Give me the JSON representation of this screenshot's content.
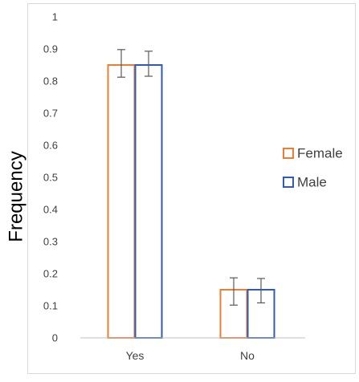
{
  "chart_data": {
    "type": "bar",
    "title": "",
    "xlabel": "",
    "ylabel": "Frequency",
    "categories": [
      "Yes",
      "No"
    ],
    "ylim": [
      0,
      1
    ],
    "yticks": [
      "0",
      "0.1",
      "0.2",
      "0.3",
      "0.4",
      "0.5",
      "0.6",
      "0.7",
      "0.8",
      "0.9",
      "1"
    ],
    "grid": false,
    "legend_position": "right",
    "series": [
      {
        "name": "Female",
        "color": "#ED7D31",
        "values": [
          0.85,
          0.15
        ],
        "error_low": [
          0.812,
          0.102
        ],
        "error_high": [
          0.898,
          0.187
        ]
      },
      {
        "name": "Male",
        "color": "#2E5BB5",
        "values": [
          0.85,
          0.15
        ],
        "error_low": [
          0.815,
          0.109
        ],
        "error_high": [
          0.893,
          0.185
        ]
      }
    ]
  }
}
